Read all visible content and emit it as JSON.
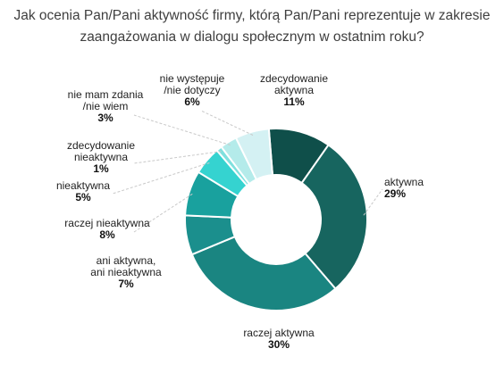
{
  "chart_data": {
    "type": "pie",
    "variant": "donut",
    "title": "Jak ocenia Pan/Pani aktywność firmy, którą Pan/Pani reprezentuje w zakresie\nzaangażowania w dialogu społecznym w ostatnim roku?",
    "slices": [
      {
        "label": "zdecydowanie\naktywna",
        "value": 11,
        "value_label": "11%",
        "color": "#0f4f4a"
      },
      {
        "label": "aktywna",
        "value": 29,
        "value_label": "29%",
        "color": "#17655f"
      },
      {
        "label": "raczej aktywna",
        "value": 30,
        "value_label": "30%",
        "color": "#1a8581"
      },
      {
        "label": "ani aktywna,\nani nieaktywna",
        "value": 7,
        "value_label": "7%",
        "color": "#1b8f8d"
      },
      {
        "label": "raczej nieaktywna",
        "value": 8,
        "value_label": "8%",
        "color": "#19a19e"
      },
      {
        "label": "nieaktywna",
        "value": 5,
        "value_label": "5%",
        "color": "#35d3d0"
      },
      {
        "label": "zdecydowanie\nnieaktywna",
        "value": 1,
        "value_label": "1%",
        "color": "#7fe0de"
      },
      {
        "label": "nie mam zdania\n/nie wiem",
        "value": 3,
        "value_label": "3%",
        "color": "#b4ebea"
      },
      {
        "label": "nie występuje\n/nie dotyczy",
        "value": 6,
        "value_label": "6%",
        "color": "#d4f1f3"
      }
    ],
    "legend": "none",
    "data_labels": "outside with leader lines"
  }
}
